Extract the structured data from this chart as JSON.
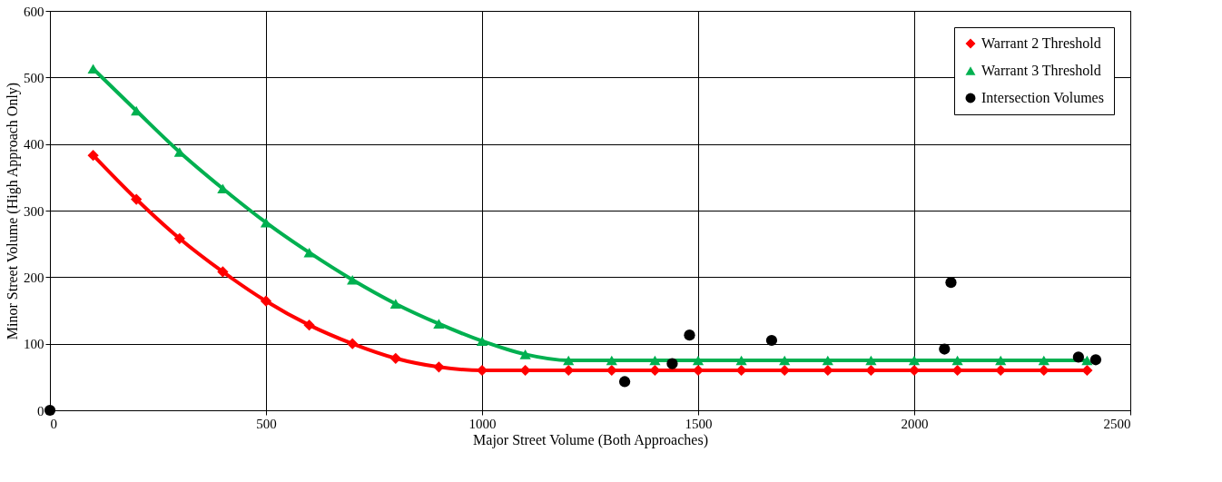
{
  "chart_data": {
    "type": "line",
    "xlabel": "Major Street Volume (Both Approaches)",
    "ylabel": "Minor Street Volume (High Approach Only)",
    "xlim": [
      0,
      2500
    ],
    "ylim": [
      0,
      600
    ],
    "xticks": [
      0,
      500,
      1000,
      1500,
      2000,
      2500
    ],
    "yticks": [
      0,
      100,
      200,
      300,
      400,
      500,
      600
    ],
    "grid": true,
    "legend": "top right",
    "line_style": "solid",
    "series": [
      {
        "name": "Warrant 2 Threshold",
        "type": "line",
        "marker": "diamond",
        "color": "#ff0000",
        "x": [
          100,
          200,
          300,
          400,
          500,
          600,
          700,
          800,
          900,
          1000,
          1100,
          1200,
          1300,
          1400,
          1500,
          1600,
          1700,
          1800,
          1900,
          2000,
          2100,
          2200,
          2300,
          2400
        ],
        "values": [
          383,
          317,
          258,
          208,
          164,
          128,
          100,
          78,
          65,
          60,
          60,
          60,
          60,
          60,
          60,
          60,
          60,
          60,
          60,
          60,
          60,
          60,
          60,
          60
        ]
      },
      {
        "name": "Warrant 3 Threshold",
        "type": "line",
        "marker": "triangle",
        "color": "#00b050",
        "x": [
          100,
          200,
          300,
          400,
          500,
          600,
          700,
          800,
          900,
          1000,
          1100,
          1200,
          1300,
          1400,
          1500,
          1600,
          1700,
          1800,
          1900,
          2000,
          2100,
          2200,
          2300,
          2400
        ],
        "values": [
          513,
          450,
          388,
          333,
          282,
          237,
          196,
          160,
          130,
          104,
          84,
          75,
          75,
          75,
          75,
          75,
          75,
          75,
          75,
          75,
          75,
          75,
          75,
          75
        ]
      },
      {
        "name": "Intersection Volumes",
        "type": "scatter",
        "marker": "circle",
        "color": "#000000",
        "x": [
          0,
          1330,
          1440,
          1480,
          1670,
          2070,
          2085,
          2380,
          2420
        ],
        "values": [
          0,
          43,
          70,
          113,
          105,
          92,
          192,
          80,
          76
        ]
      }
    ]
  }
}
